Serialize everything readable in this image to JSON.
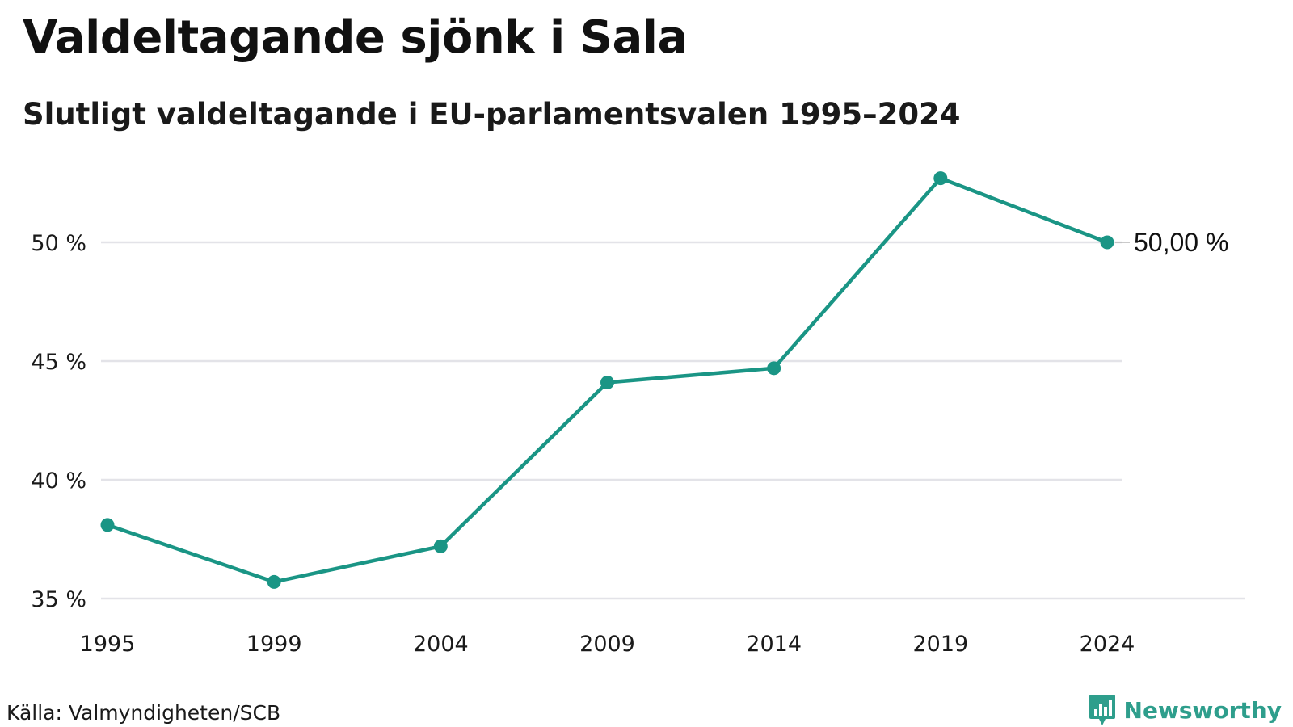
{
  "header": {
    "title": "Valdeltagande sjönk i Sala",
    "subtitle": "Slutligt valdeltagande i EU-parlamentsvalen 1995–2024"
  },
  "footer": {
    "source": "Källa: Valmyndigheten/SCB",
    "brand": "Newsworthy"
  },
  "colors": {
    "line": "#1a9585",
    "grid": "#e3e3e8",
    "brand": "#2e9e8c"
  },
  "chart_data": {
    "type": "line",
    "title": "Valdeltagande sjönk i Sala",
    "subtitle": "Slutligt valdeltagande i EU-parlamentsvalen 1995–2024",
    "xlabel": "",
    "ylabel": "",
    "categories": [
      "1995",
      "1999",
      "2004",
      "2009",
      "2014",
      "2019",
      "2024"
    ],
    "series": [
      {
        "values": [
          38.1,
          35.7,
          37.2,
          44.1,
          44.7,
          52.7,
          50.0
        ]
      }
    ],
    "ylim": [
      35,
      53
    ],
    "yticks": [
      35,
      40,
      45,
      50
    ],
    "ytick_labels": [
      "35 %",
      "40 %",
      "45 %",
      "50 %"
    ],
    "grid": true,
    "end_label": "50,00 %"
  }
}
